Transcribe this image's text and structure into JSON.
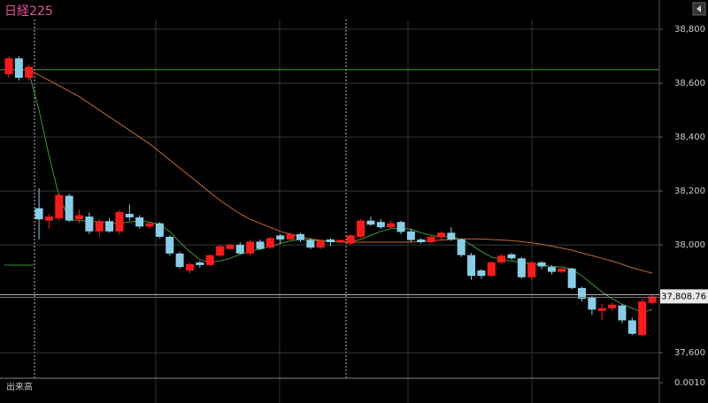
{
  "chart_data": {
    "type": "candlestick",
    "title": "日経225",
    "ylim": [
      37515,
      38892
    ],
    "yticks": [
      {
        "value": 37600,
        "label": "37,600"
      },
      {
        "value": 38000,
        "label": "38,000"
      },
      {
        "value": 38200,
        "label": "38,200"
      },
      {
        "value": 38400,
        "label": "38,400"
      },
      {
        "value": 38600,
        "label": "38,600"
      },
      {
        "value": 38800,
        "label": "38,800"
      }
    ],
    "grid": true,
    "up_color": "#ff1a1a",
    "down_color": "#87cfe8",
    "open": [
      38633,
      38692,
      38620,
      38136,
      38090,
      38098,
      38182,
      38095,
      38105,
      38050,
      38088,
      38050,
      38115,
      38102,
      38068,
      38080,
      38030,
      37968,
      37905,
      37935,
      37925,
      37960,
      37985,
      38000,
      37968,
      38012,
      37990,
      38035,
      38020,
      38040,
      38018,
      37990,
      38020,
      38010,
      38005,
      38030,
      38090,
      38085,
      38065,
      38085,
      38050,
      38020,
      38010,
      38028,
      38045,
      38020,
      37962,
      37905,
      37885,
      37935,
      37965,
      37950,
      37880,
      37935,
      37918,
      37900,
      37912,
      37840,
      37805,
      37755,
      37765,
      37775,
      37720,
      37665,
      37785
    ],
    "high": [
      38700,
      38700,
      38670,
      38210,
      38115,
      38190,
      38190,
      38130,
      38120,
      38095,
      38100,
      38130,
      38150,
      38110,
      38085,
      38085,
      38035,
      37975,
      37935,
      37940,
      37965,
      38000,
      38005,
      38010,
      38020,
      38020,
      38030,
      38040,
      38045,
      38045,
      38025,
      38020,
      38025,
      38020,
      38040,
      38095,
      38105,
      38095,
      38090,
      38090,
      38060,
      38025,
      38035,
      38050,
      38065,
      38025,
      37970,
      37910,
      37940,
      37965,
      37970,
      37955,
      37940,
      37940,
      37925,
      37915,
      37915,
      37845,
      37810,
      37780,
      37785,
      37780,
      37730,
      37800,
      37815
    ],
    "low": [
      38620,
      38610,
      38610,
      38020,
      38060,
      38090,
      38085,
      38080,
      38040,
      38030,
      38045,
      38040,
      38090,
      38060,
      38060,
      38025,
      37960,
      37912,
      37895,
      37915,
      37920,
      37955,
      37980,
      37965,
      37960,
      37980,
      37985,
      38005,
      38015,
      38010,
      37985,
      37985,
      37995,
      38005,
      38000,
      38025,
      38070,
      38060,
      38060,
      38040,
      38010,
      38005,
      38005,
      38020,
      38015,
      37955,
      37870,
      37875,
      37880,
      37930,
      37945,
      37875,
      37870,
      37910,
      37890,
      37895,
      37835,
      37790,
      37740,
      37720,
      37755,
      37710,
      37665,
      37660,
      37780
    ],
    "close": [
      38692,
      38620,
      38660,
      38095,
      38105,
      38185,
      38090,
      38110,
      38050,
      38088,
      38050,
      38122,
      38102,
      38068,
      38080,
      38030,
      37968,
      37918,
      37928,
      37925,
      37962,
      37995,
      38000,
      37968,
      38012,
      37985,
      38025,
      38020,
      38040,
      38018,
      37990,
      38015,
      38010,
      38018,
      38035,
      38090,
      38075,
      38065,
      38080,
      38048,
      38018,
      38010,
      38030,
      38045,
      38020,
      37962,
      37885,
      37885,
      37935,
      37960,
      37950,
      37880,
      37935,
      37920,
      37900,
      37912,
      37840,
      37800,
      37760,
      37765,
      37778,
      37720,
      37670,
      37790,
      37808.76
    ],
    "overlays": [
      {
        "color": "#c86a2a",
        "values": [
          null,
          null,
          38650,
          38630,
          38610,
          38590,
          38570,
          38550,
          38525,
          38500,
          38475,
          38450,
          38425,
          38400,
          38375,
          38345,
          38315,
          38285,
          38255,
          38225,
          38195,
          38165,
          38140,
          38115,
          38095,
          38080,
          38065,
          38050,
          38040,
          38030,
          38022,
          38017,
          38014,
          38012,
          38010,
          38010,
          38010,
          38010,
          38010,
          38010,
          38010,
          38012,
          38015,
          38018,
          38020,
          38022,
          38022,
          38022,
          38020,
          38018,
          38016,
          38012,
          38008,
          38002,
          37995,
          37988,
          37980,
          37970,
          37960,
          37950,
          37940,
          37928,
          37915,
          37905,
          37895
        ]
      },
      {
        "color": "#3a9a3a",
        "values": [
          null,
          null,
          38640,
          38500,
          38330,
          38180,
          38095,
          38090,
          38088,
          38085,
          38082,
          38080,
          38085,
          38088,
          38085,
          38075,
          38050,
          38010,
          37975,
          37945,
          37935,
          37940,
          37950,
          37965,
          37975,
          37985,
          37995,
          38005,
          38015,
          38020,
          38018,
          38015,
          38012,
          38010,
          38012,
          38020,
          38035,
          38050,
          38060,
          38062,
          38058,
          38045,
          38035,
          38030,
          38030,
          38020,
          38000,
          37975,
          37955,
          37945,
          37940,
          37935,
          37930,
          37925,
          37920,
          37918,
          37910,
          37885,
          37855,
          37825,
          37800,
          37780,
          37765,
          37750,
          37760
        ]
      }
    ],
    "reference_line": {
      "value": 38650,
      "color": "#3aa83a"
    },
    "last_price": {
      "value": 37808.76,
      "label": "37,808.76"
    },
    "volume_label": "出来高",
    "volume_ticks": [
      {
        "value": 0.001,
        "label": "0.0010"
      }
    ]
  }
}
